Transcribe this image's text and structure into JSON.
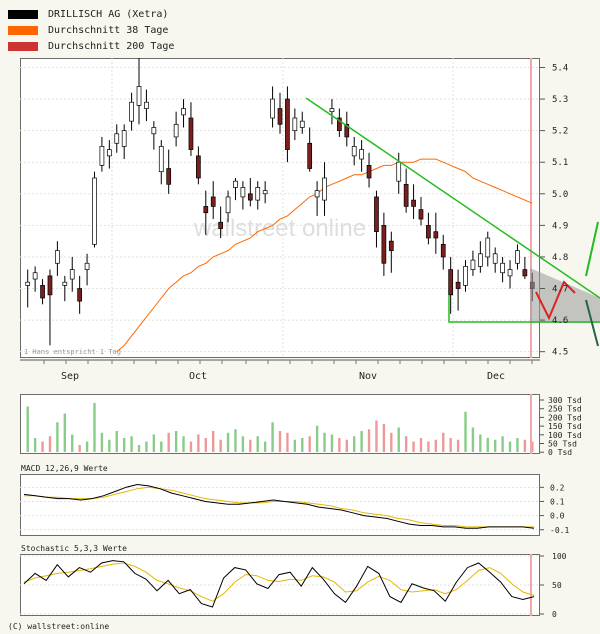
{
  "legend": [
    {
      "label": "DRILLISCH AG (Xetra)",
      "color": "#000000"
    },
    {
      "label": "Durchschnitt 38 Tage",
      "color": "#ff6600"
    },
    {
      "label": "Durchschnitt 200 Tage",
      "color": "#cc3333"
    }
  ],
  "watermark": "wallstreet online",
  "note": "1 Hans entspricht 1 Tag",
  "panels": {
    "macd_title": "MACD 12,26,9 Werte",
    "stoch_title": "Stochastic 5,3,3 Werte"
  },
  "credit": "(C) wallstreet:online",
  "chart_data": [
    {
      "type": "candlestick",
      "title": "DRILLISCH AG (Xetra)",
      "x_ticks": [
        "Sep",
        "Oct",
        "Nov",
        "Dec"
      ],
      "y_ticks": [
        4.5,
        4.6,
        4.7,
        4.8,
        4.9,
        5.0,
        5.1,
        5.2,
        5.3,
        5.4
      ],
      "ylim": [
        4.48,
        5.43
      ],
      "ohlc": [
        [
          4.71,
          4.76,
          4.64,
          4.72
        ],
        [
          4.73,
          4.77,
          4.69,
          4.75
        ],
        [
          4.71,
          4.73,
          4.65,
          4.67
        ],
        [
          4.74,
          4.76,
          4.52,
          4.68
        ],
        [
          4.78,
          4.85,
          4.74,
          4.82
        ],
        [
          4.71,
          4.74,
          4.66,
          4.72
        ],
        [
          4.73,
          4.8,
          4.69,
          4.76
        ],
        [
          4.7,
          4.74,
          4.62,
          4.66
        ],
        [
          4.76,
          4.81,
          4.71,
          4.78
        ],
        [
          4.84,
          5.07,
          4.83,
          5.05
        ],
        [
          5.09,
          5.18,
          5.07,
          5.15
        ],
        [
          5.12,
          5.17,
          5.08,
          5.14
        ],
        [
          5.16,
          5.22,
          5.13,
          5.19
        ],
        [
          5.15,
          5.22,
          5.11,
          5.2
        ],
        [
          5.23,
          5.32,
          5.2,
          5.29
        ],
        [
          5.28,
          5.43,
          5.22,
          5.34
        ],
        [
          5.27,
          5.33,
          5.23,
          5.29
        ],
        [
          5.19,
          5.23,
          5.14,
          5.21
        ],
        [
          5.07,
          5.17,
          5.03,
          5.15
        ],
        [
          5.08,
          5.14,
          5.0,
          5.03
        ],
        [
          5.18,
          5.26,
          5.15,
          5.22
        ],
        [
          5.25,
          5.3,
          5.21,
          5.27
        ],
        [
          5.24,
          5.29,
          5.12,
          5.14
        ],
        [
          5.12,
          5.15,
          5.03,
          5.05
        ],
        [
          4.96,
          5.01,
          4.87,
          4.94
        ],
        [
          4.99,
          5.04,
          4.92,
          4.96
        ],
        [
          4.91,
          4.96,
          4.86,
          4.89
        ],
        [
          4.94,
          5.01,
          4.91,
          4.99
        ],
        [
          5.02,
          5.05,
          4.98,
          5.04
        ],
        [
          4.99,
          5.04,
          4.95,
          5.02
        ],
        [
          5.0,
          5.05,
          4.96,
          4.98
        ],
        [
          4.98,
          5.04,
          4.95,
          5.02
        ],
        [
          5.0,
          5.04,
          4.97,
          5.01
        ],
        [
          5.24,
          5.34,
          5.21,
          5.3
        ],
        [
          5.27,
          5.32,
          5.19,
          5.22
        ],
        [
          5.3,
          5.34,
          5.1,
          5.14
        ],
        [
          5.2,
          5.27,
          5.17,
          5.24
        ],
        [
          5.21,
          5.26,
          5.19,
          5.23
        ],
        [
          5.16,
          5.21,
          5.07,
          5.08
        ],
        [
          4.99,
          5.04,
          4.93,
          5.01
        ],
        [
          4.98,
          5.1,
          4.93,
          5.05
        ],
        [
          5.26,
          5.3,
          5.22,
          5.27
        ],
        [
          5.24,
          5.27,
          5.18,
          5.2
        ],
        [
          5.22,
          5.26,
          5.15,
          5.18
        ],
        [
          5.12,
          5.18,
          5.09,
          5.15
        ],
        [
          5.11,
          5.17,
          5.07,
          5.14
        ],
        [
          5.09,
          5.13,
          5.02,
          5.05
        ],
        [
          4.99,
          5.01,
          4.83,
          4.88
        ],
        [
          4.9,
          4.94,
          4.74,
          4.78
        ],
        [
          4.85,
          4.88,
          4.75,
          4.82
        ],
        [
          5.04,
          5.13,
          5.0,
          5.1
        ],
        [
          5.03,
          5.08,
          4.94,
          4.96
        ],
        [
          4.98,
          5.03,
          4.92,
          4.96
        ],
        [
          4.95,
          4.99,
          4.9,
          4.92
        ],
        [
          4.9,
          4.94,
          4.84,
          4.86
        ],
        [
          4.88,
          4.94,
          4.81,
          4.86
        ],
        [
          4.84,
          4.87,
          4.76,
          4.8
        ],
        [
          4.76,
          4.8,
          4.62,
          4.68
        ],
        [
          4.72,
          4.76,
          4.63,
          4.7
        ],
        [
          4.71,
          4.79,
          4.69,
          4.77
        ],
        [
          4.76,
          4.82,
          4.74,
          4.79
        ],
        [
          4.77,
          4.85,
          4.75,
          4.81
        ],
        [
          4.8,
          4.88,
          4.77,
          4.86
        ],
        [
          4.78,
          4.83,
          4.75,
          4.81
        ],
        [
          4.75,
          4.8,
          4.72,
          4.78
        ],
        [
          4.74,
          4.79,
          4.7,
          4.76
        ],
        [
          4.78,
          4.84,
          4.76,
          4.82
        ],
        [
          4.76,
          4.8,
          4.73,
          4.74
        ],
        [
          4.72,
          4.75,
          4.66,
          4.7
        ]
      ],
      "series": [
        {
          "name": "Durchschnitt 38 Tage",
          "values": [
            4.5,
            4.52,
            4.55,
            4.58,
            4.61,
            4.64,
            4.67,
            4.7,
            4.72,
            4.74,
            4.75,
            4.77,
            4.78,
            4.8,
            4.81,
            4.82,
            4.84,
            4.85,
            4.86,
            4.88,
            4.89,
            4.9,
            4.92,
            4.93,
            4.95,
            4.97,
            4.99,
            5.0,
            5.02,
            5.03,
            5.04,
            5.05,
            5.06,
            5.06,
            5.07,
            5.08,
            5.09,
            5.09,
            5.1,
            5.1,
            5.1,
            5.11,
            5.11,
            5.11,
            5.1,
            5.09,
            5.08,
            5.07,
            5.05,
            5.04,
            5.03,
            5.02,
            5.01,
            5.0,
            4.99,
            4.98,
            4.97
          ]
        }
      ]
    },
    {
      "type": "bar",
      "title": "Volume",
      "y_ticks": [
        "300 Tsd",
        "250 Tsd",
        "200 Tsd",
        "150 Tsd",
        "100 Tsd",
        "50 Tsd",
        "0 Tsd"
      ],
      "ylim": [
        0,
        320
      ],
      "values": [
        260,
        80,
        60,
        90,
        170,
        220,
        100,
        40,
        60,
        280,
        110,
        70,
        120,
        80,
        90,
        40,
        60,
        100,
        60,
        110,
        120,
        90,
        60,
        100,
        80,
        120,
        70,
        110,
        130,
        90,
        70,
        90,
        60,
        170,
        120,
        110,
        70,
        80,
        90,
        150,
        110,
        100,
        80,
        70,
        90,
        120,
        130,
        180,
        160,
        110,
        140,
        90,
        60,
        80,
        60,
        70,
        110,
        80,
        70,
        230,
        140,
        100,
        80,
        70,
        90,
        60,
        80,
        70,
        60
      ]
    },
    {
      "type": "line",
      "title": "MACD 12,26,9 Werte",
      "y_ticks": [
        0.2,
        0.1,
        0.0,
        -0.1
      ],
      "ylim": [
        -0.13,
        0.28
      ],
      "series": [
        {
          "name": "MACD",
          "values": [
            0.15,
            0.14,
            0.13,
            0.12,
            0.12,
            0.11,
            0.12,
            0.14,
            0.17,
            0.2,
            0.22,
            0.21,
            0.19,
            0.16,
            0.14,
            0.12,
            0.1,
            0.09,
            0.08,
            0.08,
            0.09,
            0.1,
            0.11,
            0.1,
            0.09,
            0.08,
            0.06,
            0.05,
            0.04,
            0.02,
            0.0,
            -0.01,
            -0.02,
            -0.04,
            -0.06,
            -0.07,
            -0.07,
            -0.08,
            -0.08,
            -0.09,
            -0.09,
            -0.08,
            -0.08,
            -0.08,
            -0.08,
            -0.09
          ]
        },
        {
          "name": "Signal",
          "values": [
            0.14,
            0.14,
            0.13,
            0.13,
            0.12,
            0.12,
            0.12,
            0.13,
            0.15,
            0.17,
            0.19,
            0.2,
            0.19,
            0.18,
            0.16,
            0.14,
            0.12,
            0.11,
            0.1,
            0.09,
            0.09,
            0.09,
            0.1,
            0.1,
            0.1,
            0.09,
            0.08,
            0.07,
            0.05,
            0.04,
            0.02,
            0.01,
            0.0,
            -0.02,
            -0.03,
            -0.05,
            -0.06,
            -0.07,
            -0.07,
            -0.08,
            -0.08,
            -0.08,
            -0.08,
            -0.08,
            -0.08,
            -0.08
          ]
        }
      ]
    },
    {
      "type": "line",
      "title": "Stochastic 5,3,3 Werte",
      "y_ticks": [
        100,
        50,
        0
      ],
      "ylim": [
        0,
        100
      ],
      "series": [
        {
          "name": "%K",
          "values": [
            52,
            70,
            58,
            85,
            64,
            80,
            72,
            88,
            92,
            90,
            70,
            60,
            40,
            58,
            35,
            42,
            18,
            12,
            62,
            80,
            76,
            52,
            44,
            68,
            72,
            48,
            80,
            60,
            35,
            20,
            48,
            82,
            70,
            30,
            20,
            52,
            45,
            40,
            22,
            55,
            80,
            88,
            72,
            55,
            30,
            25,
            30
          ]
        },
        {
          "name": "%D",
          "values": [
            55,
            62,
            66,
            70,
            72,
            75,
            78,
            82,
            86,
            88,
            82,
            72,
            58,
            52,
            45,
            40,
            30,
            22,
            35,
            55,
            68,
            66,
            58,
            56,
            60,
            58,
            66,
            64,
            55,
            38,
            40,
            55,
            65,
            58,
            42,
            38,
            40,
            42,
            35,
            42,
            58,
            75,
            80,
            70,
            52,
            38,
            32
          ]
        }
      ]
    }
  ]
}
